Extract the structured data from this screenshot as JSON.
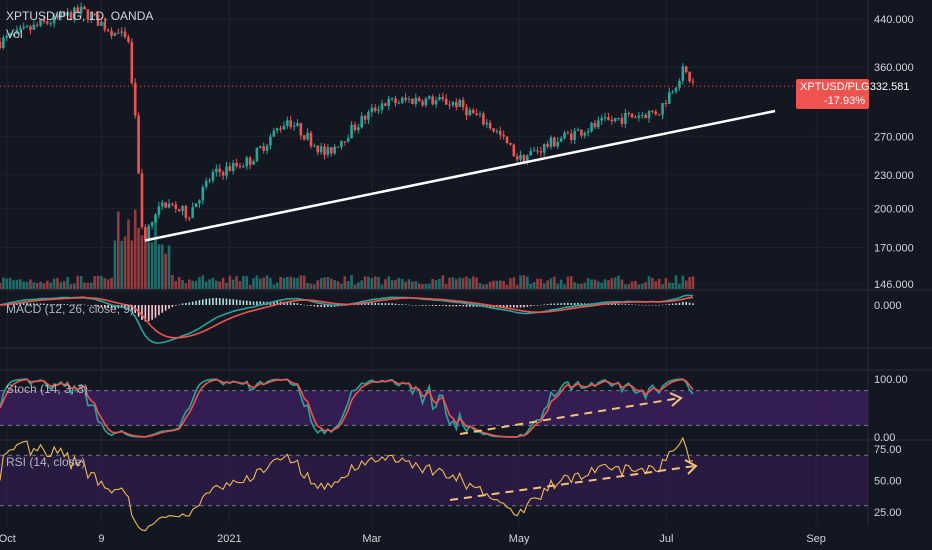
{
  "header": {
    "symbol_line": "XPTUSD/PLG, 1D, OANDA",
    "volume_label": "Vol"
  },
  "price_tag": {
    "symbol": "XPTUSD/PLG",
    "price": "332.581",
    "change": "-17.93%",
    "color": "#ef5350"
  },
  "colors": {
    "background": "#131722",
    "up": "#26a69a",
    "down": "#ef5350",
    "trendline": "#ffffff",
    "macd": "#26a69a",
    "signal": "#ef5350",
    "stoch_k": "#26a69a",
    "stoch_d": "#ef5350",
    "rsi": "#f0b94f",
    "dashed_arrow": "#f0c27a",
    "band_fill": "#3b1e5a"
  },
  "chart_data": [
    {
      "type": "candlestick",
      "name": "XPTUSD/PLG, 1D, OANDA",
      "y_scale": "log",
      "y_ticks": [
        "440.000",
        "360.000",
        "270.000",
        "230.000",
        "200.000",
        "170.000",
        "146.000"
      ],
      "x_ticks": [
        "Oct",
        "9",
        "2021",
        "Mar",
        "May",
        "Jul",
        "Sep"
      ],
      "last_price": 332.581,
      "change_pct": -17.93,
      "ohlc_path_points": [
        {
          "date": "2020-09-28",
          "close": 400
        },
        {
          "date": "2020-10-15",
          "close": 430
        },
        {
          "date": "2020-11-01",
          "close": 455
        },
        {
          "date": "2020-11-20",
          "close": 400
        },
        {
          "date": "2020-11-26",
          "close": 175
        },
        {
          "date": "2020-12-05",
          "close": 205
        },
        {
          "date": "2020-12-15",
          "close": 195
        },
        {
          "date": "2020-12-25",
          "close": 230
        },
        {
          "date": "2021-01-10",
          "close": 245
        },
        {
          "date": "2021-01-25",
          "close": 290
        },
        {
          "date": "2021-02-10",
          "close": 250
        },
        {
          "date": "2021-03-05",
          "close": 310
        },
        {
          "date": "2021-03-20",
          "close": 315
        },
        {
          "date": "2021-04-05",
          "close": 310
        },
        {
          "date": "2021-04-20",
          "close": 280
        },
        {
          "date": "2021-05-01",
          "close": 245
        },
        {
          "date": "2021-05-20",
          "close": 270
        },
        {
          "date": "2021-06-10",
          "close": 290
        },
        {
          "date": "2021-06-28",
          "close": 300
        },
        {
          "date": "2021-07-08",
          "close": 355
        },
        {
          "date": "2021-07-13",
          "close": 332.581
        }
      ],
      "trendline": {
        "from": {
          "date": "2020-11-27",
          "price": 175
        },
        "to": {
          "date": "2021-08-15",
          "price": 300
        }
      }
    },
    {
      "type": "bar",
      "name": "Vol"
    },
    {
      "type": "line",
      "name": "MACD (12, 26, close, 9)",
      "y_ticks": [
        "0.000"
      ]
    },
    {
      "type": "line",
      "name": "Stoch (14, 3, 3)",
      "y_ticks": [
        "100.00",
        "0.00"
      ],
      "band": [
        20,
        80
      ]
    },
    {
      "type": "line",
      "name": "RSI (14, close)",
      "y_ticks": [
        "75.00",
        "50.00",
        "25.00"
      ],
      "band": [
        30,
        70
      ]
    }
  ]
}
